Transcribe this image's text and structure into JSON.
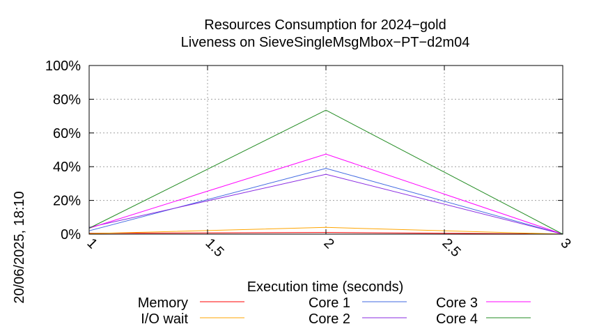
{
  "chart_data": {
    "type": "line",
    "title": "Resources Consumption for 2024−gold",
    "subtitle": "Liveness on SieveSingleMsgMbox−PT−d2m04",
    "xlabel": "Execution time (seconds)",
    "ylabel": "",
    "side_label": "20/06/2025, 18:10",
    "x": [
      1,
      2,
      3
    ],
    "xlim": [
      1,
      3
    ],
    "ylim": [
      0,
      100
    ],
    "x_ticks": [
      "1",
      "1.5",
      "2",
      "2.5",
      "3"
    ],
    "x_tick_values": [
      1,
      1.5,
      2,
      2.5,
      3
    ],
    "y_ticks": [
      "0%",
      "20%",
      "40%",
      "60%",
      "80%",
      "100%"
    ],
    "y_tick_values": [
      0,
      20,
      40,
      60,
      80,
      100
    ],
    "grid": true,
    "legend_position": "bottom",
    "series": [
      {
        "name": "Memory",
        "color": "#ff0000",
        "values": [
          0.5,
          1.0,
          0
        ]
      },
      {
        "name": "I/O wait",
        "color": "#ffa500",
        "values": [
          0.3,
          4.0,
          0
        ]
      },
      {
        "name": "Core 1",
        "color": "#4169e1",
        "values": [
          2.0,
          39.0,
          0
        ]
      },
      {
        "name": "Core 2",
        "color": "#8a2be2",
        "values": [
          4.0,
          35.5,
          0
        ]
      },
      {
        "name": "Core 3",
        "color": "#ff00ff",
        "values": [
          3.5,
          47.5,
          0
        ]
      },
      {
        "name": "Core 4",
        "color": "#228b22",
        "values": [
          3.5,
          73.5,
          0
        ]
      }
    ]
  }
}
